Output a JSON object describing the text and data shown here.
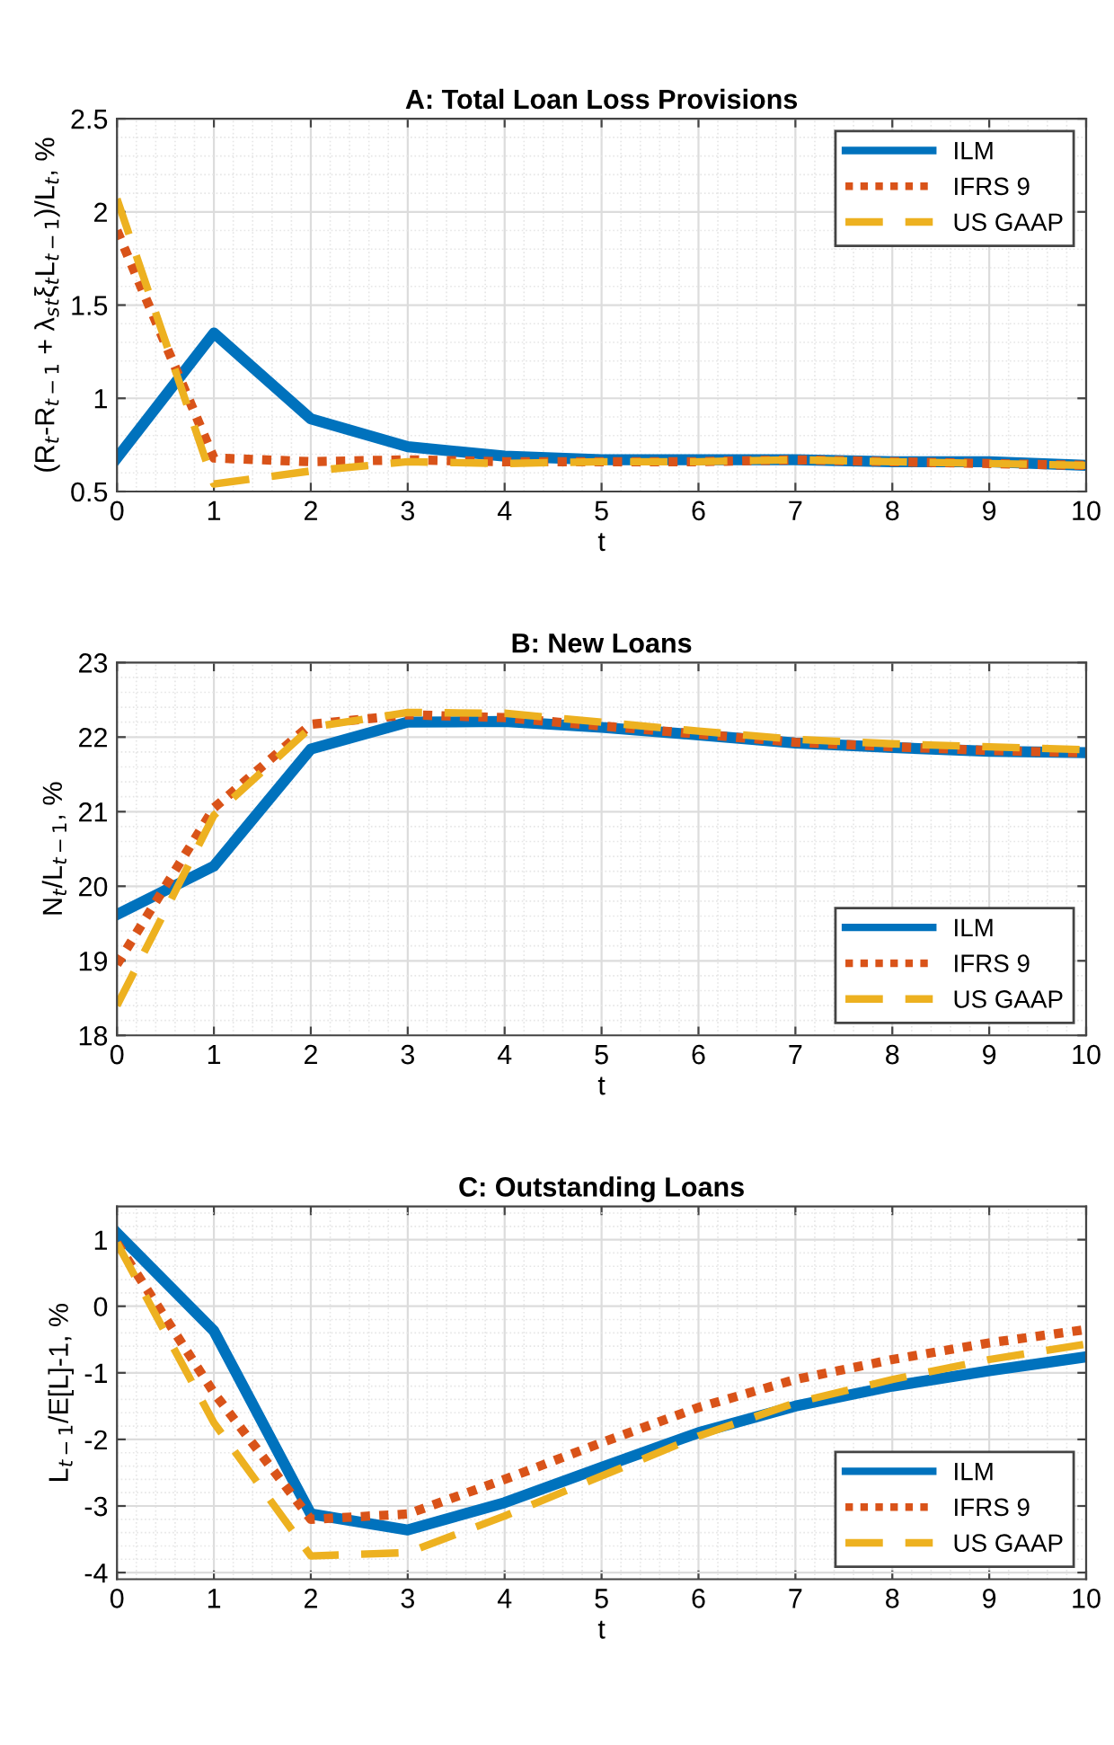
{
  "chart_data": [
    {
      "type": "line",
      "title": "A: Total Loan Loss Provisions",
      "xlabel": "t",
      "ylabel": "(R$_{t}$-R$_{t−1}$ + λ$_{s}$$_{t}$ξ$_{t}$L$_{t−1}$)/L$_{t}$, %",
      "x": [
        0,
        1,
        2,
        3,
        4,
        5,
        6,
        7,
        8,
        9,
        10
      ],
      "xlim": [
        0,
        10
      ],
      "xticks": [
        0,
        1,
        2,
        3,
        4,
        5,
        6,
        7,
        8,
        9,
        10
      ],
      "ylim": [
        0.5,
        2.5
      ],
      "yticks": [
        0.5,
        1,
        1.5,
        2,
        2.5
      ],
      "grid": true,
      "legend": "top right",
      "series": [
        {
          "name": "ILM",
          "color": "#0072bd",
          "line_style": "solid",
          "values": [
            0.68,
            1.35,
            0.89,
            0.74,
            0.69,
            0.67,
            0.67,
            0.67,
            0.66,
            0.66,
            0.64
          ]
        },
        {
          "name": "IFRS 9",
          "color": "#d95319",
          "line_style": "dotted",
          "values": [
            1.9,
            0.68,
            0.66,
            0.67,
            0.66,
            0.66,
            0.66,
            0.67,
            0.66,
            0.65,
            0.64
          ]
        },
        {
          "name": "US GAAP",
          "color": "#edb120",
          "line_style": "dashed",
          "values": [
            2.07,
            0.54,
            0.61,
            0.66,
            0.65,
            0.66,
            0.66,
            0.67,
            0.66,
            0.65,
            0.64
          ]
        }
      ]
    },
    {
      "type": "line",
      "title": "B: New Loans",
      "xlabel": "t",
      "ylabel": "N$_{t}$/L$_{t−1}$, %",
      "x": [
        0,
        1,
        2,
        3,
        4,
        5,
        6,
        7,
        8,
        9,
        10
      ],
      "xlim": [
        0,
        10
      ],
      "xticks": [
        0,
        1,
        2,
        3,
        4,
        5,
        6,
        7,
        8,
        9,
        10
      ],
      "ylim": [
        18,
        23
      ],
      "yticks": [
        18,
        19,
        20,
        21,
        22,
        23
      ],
      "grid": true,
      "legend": "bottom right",
      "series": [
        {
          "name": "ILM",
          "color": "#0072bd",
          "line_style": "solid",
          "values": [
            19.62,
            20.27,
            21.84,
            22.2,
            22.21,
            22.13,
            22.03,
            21.92,
            21.86,
            21.81,
            21.79
          ]
        },
        {
          "name": "IFRS 9",
          "color": "#d95319",
          "line_style": "dotted",
          "values": [
            18.95,
            21.05,
            22.17,
            22.3,
            22.26,
            22.15,
            22.04,
            21.93,
            21.87,
            21.82,
            21.79
          ]
        },
        {
          "name": "US GAAP",
          "color": "#edb120",
          "line_style": "dashed",
          "values": [
            18.4,
            20.95,
            22.13,
            22.33,
            22.32,
            22.2,
            22.08,
            21.97,
            21.91,
            21.87,
            21.83
          ]
        }
      ]
    },
    {
      "type": "line",
      "title": "C: Outstanding Loans",
      "xlabel": "t",
      "ylabel": "L$_{t−1}$/E[L]-1, %",
      "x": [
        0,
        1,
        2,
        3,
        4,
        5,
        6,
        7,
        8,
        9,
        10
      ],
      "xlim": [
        0,
        10
      ],
      "xticks": [
        0,
        1,
        2,
        3,
        4,
        5,
        6,
        7,
        8,
        9,
        10
      ],
      "ylim": [
        -4.1,
        1.5
      ],
      "yticks": [
        -4,
        -3,
        -2,
        -1,
        0,
        1
      ],
      "grid": true,
      "legend": "bottom right",
      "series": [
        {
          "name": "ILM",
          "color": "#0072bd",
          "line_style": "solid",
          "values": [
            1.1,
            -0.37,
            -3.12,
            -3.36,
            -2.95,
            -2.42,
            -1.9,
            -1.5,
            -1.2,
            -0.97,
            -0.76
          ]
        },
        {
          "name": "IFRS 9",
          "color": "#d95319",
          "line_style": "dotted",
          "values": [
            0.95,
            -1.3,
            -3.2,
            -3.12,
            -2.6,
            -2.05,
            -1.52,
            -1.1,
            -0.8,
            -0.55,
            -0.35
          ]
        },
        {
          "name": "US GAAP",
          "color": "#edb120",
          "line_style": "dashed",
          "values": [
            0.95,
            -1.75,
            -3.75,
            -3.7,
            -3.15,
            -2.55,
            -1.95,
            -1.45,
            -1.1,
            -0.8,
            -0.57
          ]
        }
      ]
    }
  ]
}
